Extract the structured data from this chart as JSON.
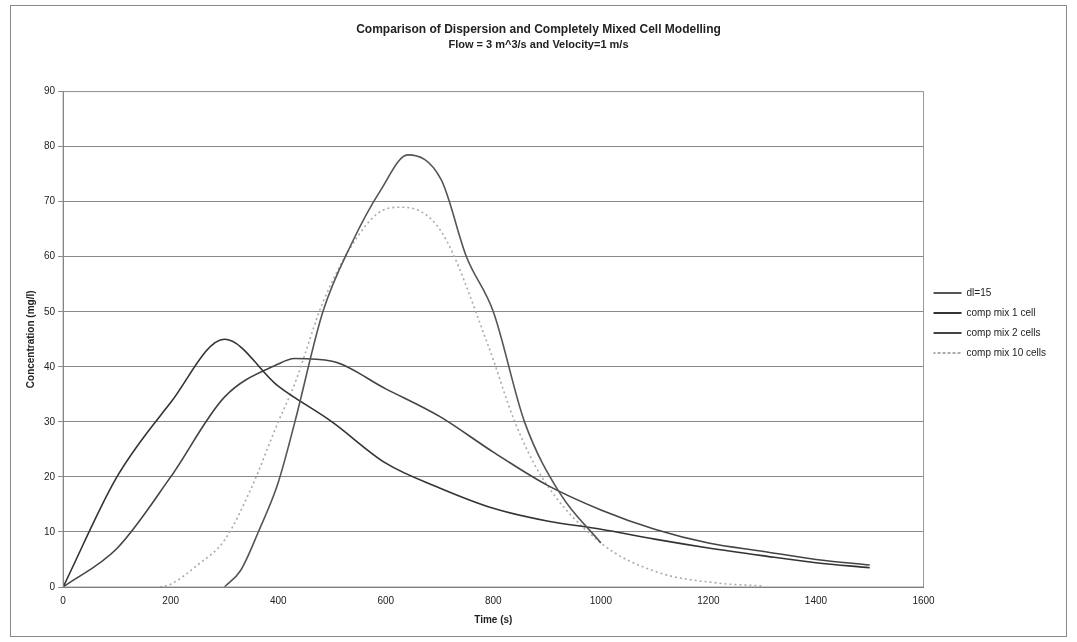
{
  "chart_data": {
    "type": "line",
    "title": "Comparison of Dispersion and Completely Mixed Cell Modelling",
    "subtitle": "Flow = 3 m^3/s and Velocity=1 m/s",
    "xlabel": "Time (s)",
    "ylabel": "Concentration (mg/l)",
    "xlim": [
      0,
      1600
    ],
    "xticks": [
      0,
      200,
      400,
      600,
      800,
      1000,
      1200,
      1400,
      1600
    ],
    "ylim": [
      0,
      90
    ],
    "yticks": [
      0,
      10,
      20,
      30,
      40,
      50,
      60,
      70,
      80,
      90
    ],
    "grid": "y",
    "legend": "right",
    "marker": "none",
    "series": [
      {
        "name": "dl=15",
        "color": "#555555",
        "line_style": "solid",
        "x": [
          300,
          330,
          363,
          400,
          431,
          483,
          537,
          590,
          641,
          703,
          750,
          800,
          858,
          924,
          1000
        ],
        "values": [
          0,
          3,
          10,
          19,
          30,
          50,
          62.5,
          72,
          78.5,
          74,
          60,
          50,
          30,
          17,
          8
        ]
      },
      {
        "name": "comp mix 1 cell",
        "color": "#333333",
        "line_style": "solid",
        "x": [
          0,
          100,
          200,
          300,
          400,
          500,
          600,
          700,
          800,
          900,
          1000,
          1100,
          1200,
          1300,
          1400,
          1500
        ],
        "values": [
          0,
          20,
          33.5,
          45,
          36.5,
          30,
          22.5,
          18,
          14.3,
          12,
          10.5,
          8.7,
          7.1,
          5.7,
          4.4,
          3.5
        ]
      },
      {
        "name": "comp mix 2 cells",
        "color": "#444444",
        "line_style": "solid",
        "x": [
          0,
          100,
          200,
          300,
          400,
          430,
          500,
          600,
          700,
          800,
          900,
          1000,
          1100,
          1200,
          1300,
          1400,
          1500
        ],
        "values": [
          0,
          7,
          20,
          34.5,
          40.5,
          41.5,
          41,
          36,
          31,
          24.5,
          18.5,
          14,
          10.5,
          8,
          6.5,
          5,
          4
        ]
      },
      {
        "name": "comp mix 10 cells",
        "color": "#aaaaaa",
        "line_style": "dotted",
        "x": [
          180,
          200,
          250,
          300,
          350,
          400,
          431,
          483,
          550,
          596,
          630,
          703,
          790,
          840,
          890,
          1000,
          1105,
          1219,
          1300
        ],
        "values": [
          0,
          0.5,
          4,
          8.5,
          18,
          30,
          37,
          51.7,
          64,
          68.5,
          69,
          64.6,
          44,
          30,
          20,
          8,
          2.7,
          0.7,
          0.2
        ]
      }
    ]
  }
}
